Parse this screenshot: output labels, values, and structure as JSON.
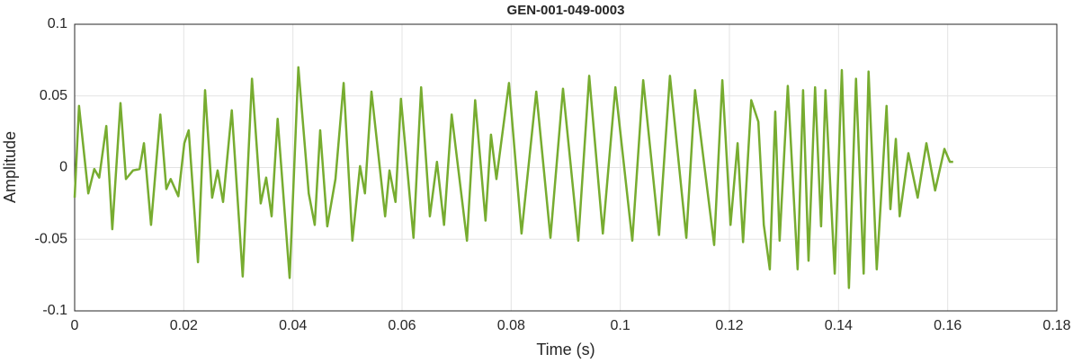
{
  "chart_data": {
    "type": "line",
    "title": "GEN-001-049-0003",
    "xlabel": "Time (s)",
    "ylabel": "Amplitude",
    "xlim": [
      0,
      0.18
    ],
    "xticks": [
      0,
      0.02,
      0.04,
      0.06,
      0.08,
      0.1,
      0.12,
      0.14,
      0.16,
      0.18
    ],
    "ylim": [
      -0.1,
      0.1
    ],
    "yticks": [
      -0.1,
      -0.05,
      0,
      0.05,
      0.1
    ],
    "grid": true,
    "series": [
      {
        "color": "#77ac30",
        "x": [
          0,
          0.0008,
          0.0025,
          0.0036,
          0.0045,
          0.0058,
          0.0069,
          0.0084,
          0.0094,
          0.0107,
          0.0119,
          0.0127,
          0.014,
          0.0157,
          0.0168,
          0.0176,
          0.019,
          0.0201,
          0.0209,
          0.0226,
          0.0239,
          0.0252,
          0.0262,
          0.0272,
          0.0288,
          0.0308,
          0.0325,
          0.0341,
          0.0351,
          0.0361,
          0.0372,
          0.0394,
          0.041,
          0.0429,
          0.044,
          0.045,
          0.0463,
          0.0478,
          0.0493,
          0.0509,
          0.0523,
          0.0532,
          0.0544,
          0.0569,
          0.0577,
          0.0588,
          0.0598,
          0.0621,
          0.0635,
          0.0651,
          0.0664,
          0.0677,
          0.0691,
          0.0719,
          0.0734,
          0.0753,
          0.0763,
          0.0773,
          0.0796,
          0.0819,
          0.0846,
          0.0872,
          0.0895,
          0.0923,
          0.0943,
          0.0968,
          0.0991,
          0.1022,
          0.1042,
          0.1071,
          0.1091,
          0.1121,
          0.1137,
          0.1172,
          0.1187,
          0.1202,
          0.1215,
          0.1225,
          0.124,
          0.1253,
          0.1263,
          0.1274,
          0.1284,
          0.1292,
          0.1307,
          0.1325,
          0.1335,
          0.1345,
          0.1357,
          0.1368,
          0.1376,
          0.1393,
          0.1406,
          0.1419,
          0.1432,
          0.1446,
          0.1455,
          0.147,
          0.1488,
          0.1495,
          0.1505,
          0.1512,
          0.1528,
          0.1545,
          0.1561,
          0.1577,
          0.1594,
          0.1604,
          0.161
        ],
        "values": [
          -0.021,
          0.043,
          -0.018,
          -0.001,
          -0.007,
          0.029,
          -0.043,
          0.045,
          -0.008,
          -0.002,
          -0.001,
          0.017,
          -0.04,
          0.037,
          -0.015,
          -0.008,
          -0.02,
          0.017,
          0.026,
          -0.066,
          0.054,
          -0.021,
          -0.002,
          -0.024,
          0.04,
          -0.076,
          0.062,
          -0.025,
          -0.007,
          -0.034,
          0.034,
          -0.077,
          0.07,
          -0.018,
          -0.04,
          0.026,
          -0.041,
          -0.008,
          0.059,
          -0.051,
          0.001,
          -0.018,
          0.053,
          -0.034,
          -0.002,
          -0.024,
          0.048,
          -0.049,
          0.056,
          -0.034,
          0.004,
          -0.04,
          0.037,
          -0.051,
          0.047,
          -0.037,
          0.023,
          -0.008,
          0.059,
          -0.046,
          0.053,
          -0.049,
          0.055,
          -0.051,
          0.064,
          -0.046,
          0.056,
          -0.051,
          0.061,
          -0.047,
          0.064,
          -0.049,
          0.054,
          -0.054,
          0.061,
          -0.04,
          0.017,
          -0.052,
          0.047,
          0.032,
          -0.04,
          -0.071,
          0.039,
          -0.051,
          0.057,
          -0.071,
          0.054,
          -0.065,
          0.056,
          -0.041,
          0.054,
          -0.074,
          0.068,
          -0.084,
          0.062,
          -0.074,
          0.067,
          -0.071,
          0.043,
          -0.029,
          0.02,
          -0.034,
          0.01,
          -0.021,
          0.017,
          -0.016,
          0.013,
          0.004,
          0.004
        ]
      }
    ]
  }
}
